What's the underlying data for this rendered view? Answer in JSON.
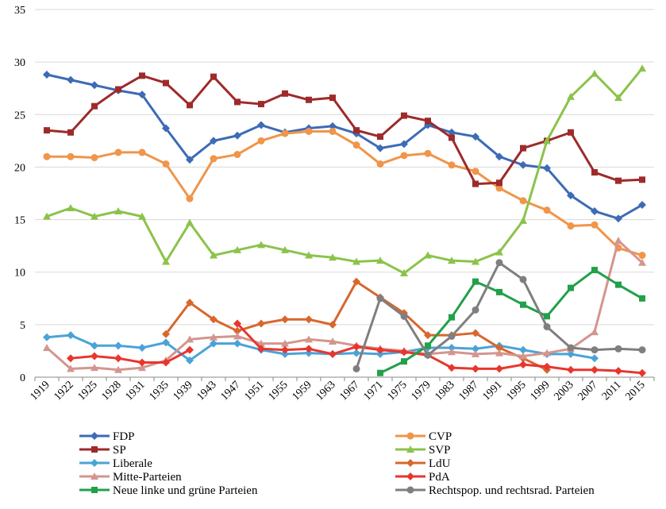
{
  "chart_data": {
    "type": "line",
    "title": "",
    "xlabel": "",
    "ylabel": "",
    "ylim": [
      0,
      35
    ],
    "yticks": [
      0,
      5,
      10,
      15,
      20,
      25,
      30,
      35
    ],
    "grid": "horizontal",
    "legend_position": "bottom",
    "categories": [
      "1919",
      "1922",
      "1925",
      "1928",
      "1931",
      "1935",
      "1939",
      "1943",
      "1947",
      "1951",
      "1955",
      "1959",
      "1963",
      "1967",
      "1971",
      "1975",
      "1979",
      "1983",
      "1987",
      "1991",
      "1995",
      "1999",
      "2003",
      "2007",
      "2011",
      "2015"
    ],
    "series": [
      {
        "name": "FDP",
        "color": "#3d6bb5",
        "marker": "diamond",
        "values": [
          28.8,
          28.3,
          27.8,
          27.3,
          26.9,
          23.7,
          20.7,
          22.5,
          23.0,
          24.0,
          23.3,
          23.7,
          23.9,
          23.2,
          21.8,
          22.2,
          24.0,
          23.3,
          22.9,
          21.0,
          20.2,
          19.9,
          17.3,
          15.8,
          15.1,
          16.4
        ]
      },
      {
        "name": "CVP",
        "color": "#f0954a",
        "marker": "circle",
        "values": [
          21.0,
          21.0,
          20.9,
          21.4,
          21.4,
          20.3,
          17.0,
          20.8,
          21.2,
          22.5,
          23.2,
          23.4,
          23.4,
          22.1,
          20.3,
          21.1,
          21.3,
          20.2,
          19.6,
          18.0,
          16.8,
          15.9,
          14.4,
          14.5,
          12.3,
          11.6
        ]
      },
      {
        "name": "SP",
        "color": "#9e2a2a",
        "marker": "square",
        "values": [
          23.5,
          23.3,
          25.8,
          27.4,
          28.7,
          28.0,
          25.9,
          28.6,
          26.2,
          26.0,
          27.0,
          26.4,
          26.6,
          23.5,
          22.9,
          24.9,
          24.4,
          22.8,
          18.4,
          18.5,
          21.8,
          22.5,
          23.3,
          19.5,
          18.7,
          18.8
        ]
      },
      {
        "name": "SVP",
        "color": "#8bc34a",
        "marker": "triangle",
        "values": [
          15.3,
          16.1,
          15.3,
          15.8,
          15.3,
          11.0,
          14.7,
          11.6,
          12.1,
          12.6,
          12.1,
          11.6,
          11.4,
          11.0,
          11.1,
          9.9,
          11.6,
          11.1,
          11.0,
          11.9,
          14.9,
          22.5,
          26.7,
          28.9,
          26.6,
          29.4
        ]
      },
      {
        "name": "Liberale",
        "color": "#4aa3d8",
        "marker": "diamond",
        "values": [
          3.8,
          4.0,
          3.0,
          3.0,
          2.8,
          3.3,
          1.6,
          3.2,
          3.2,
          2.6,
          2.2,
          2.3,
          2.2,
          2.3,
          2.2,
          2.4,
          2.8,
          2.8,
          2.7,
          3.0,
          2.6,
          2.2,
          2.2,
          1.8,
          null,
          null
        ]
      },
      {
        "name": "LdU",
        "color": "#d8672e",
        "marker": "diamond",
        "values": [
          null,
          null,
          null,
          null,
          null,
          4.1,
          7.1,
          5.5,
          4.4,
          5.1,
          5.5,
          5.5,
          5.0,
          9.1,
          7.6,
          6.1,
          4.0,
          4.0,
          4.2,
          2.8,
          1.8,
          0.7,
          null,
          null,
          null,
          null
        ]
      },
      {
        "name": "Mitte-Parteien",
        "color": "#d4958f",
        "marker": "triangle",
        "values": [
          2.8,
          0.8,
          0.9,
          0.7,
          0.9,
          1.6,
          3.6,
          3.8,
          3.9,
          3.2,
          3.2,
          3.6,
          3.4,
          3.0,
          2.7,
          2.5,
          2.2,
          2.4,
          2.2,
          2.3,
          2.0,
          2.3,
          2.7,
          4.3,
          13.0,
          10.9
        ]
      },
      {
        "name": "PdA",
        "color": "#e8362e",
        "marker": "diamond",
        "values": [
          null,
          1.8,
          2.0,
          1.8,
          1.4,
          1.4,
          2.6,
          null,
          5.1,
          2.7,
          2.6,
          2.7,
          2.2,
          2.9,
          2.6,
          2.4,
          2.1,
          0.9,
          0.8,
          0.8,
          1.2,
          1.0,
          0.7,
          0.7,
          0.6,
          0.4
        ]
      },
      {
        "name": "Neue linke und grüne Parteien",
        "color": "#22a04a",
        "marker": "square",
        "values": [
          null,
          null,
          null,
          null,
          null,
          null,
          null,
          null,
          null,
          null,
          null,
          null,
          null,
          null,
          0.4,
          1.5,
          3.0,
          5.7,
          9.1,
          8.1,
          6.9,
          5.8,
          8.5,
          10.2,
          8.8,
          7.5
        ]
      },
      {
        "name": "Rechtspop. und rechtsrad. Parteien",
        "color": "#7f7f7f",
        "marker": "circle",
        "values": [
          null,
          null,
          null,
          null,
          null,
          null,
          null,
          null,
          null,
          null,
          null,
          null,
          null,
          0.8,
          7.5,
          5.8,
          2.1,
          3.9,
          6.4,
          10.9,
          9.3,
          4.8,
          2.8,
          2.6,
          2.7,
          2.6
        ]
      }
    ]
  }
}
